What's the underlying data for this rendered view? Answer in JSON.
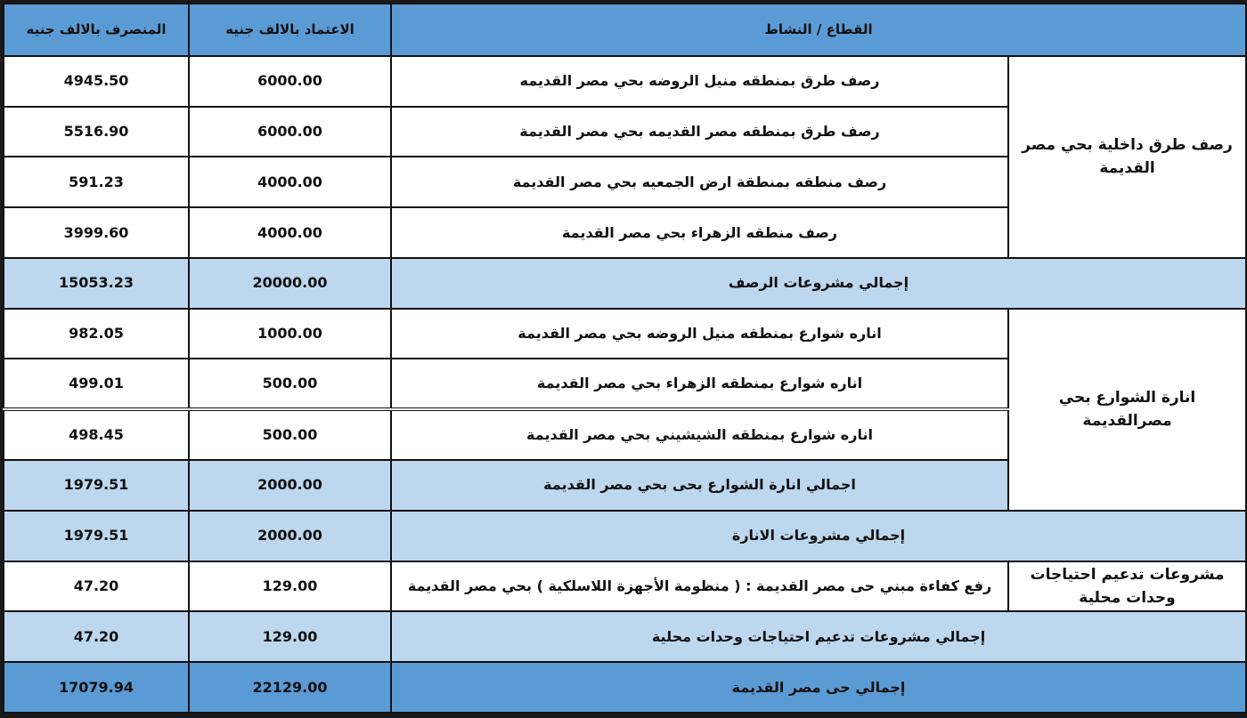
{
  "header": {
    "sector": "القطاع / النشاط",
    "budget": "الاعتماد بالالف جنيه",
    "spent": "المنصرف بالالف جنيه"
  },
  "groups": {
    "paving": {
      "sector": "رصف طرق داخلية بحي مصر القديمة",
      "rows": [
        {
          "activity": "رصف طرق بمنطقه منيل الروضه بحي مصر القديمه",
          "budget": "6000.00",
          "spent": "4945.50"
        },
        {
          "activity": "رصف طرق بمنطقه مصر القديمه  بحي مصر القديمة",
          "budget": "6000.00",
          "spent": "5516.90"
        },
        {
          "activity": "رصف منطقه بمنطقة ارض الجمعيه بحي مصر القديمة",
          "budget": "4000.00",
          "spent": "591.23"
        },
        {
          "activity": "رصف منطقه الزهراء  بحي مصر القديمة",
          "budget": "4000.00",
          "spent": "3999.60"
        }
      ],
      "total": {
        "label": "إجمالي مشروعات الرصف",
        "budget": "20000.00",
        "spent": "15053.23"
      }
    },
    "lighting": {
      "sector": "انارة الشوارع بحي مصرالقديمة",
      "rows": [
        {
          "activity": "اناره شوارع بمنطقه منيل الروضه  بحي مصر القديمة",
          "budget": "1000.00",
          "spent": "982.05"
        },
        {
          "activity": "اناره شوارع بمنطقه الزهراء  بحي مصر القديمة",
          "budget": "500.00",
          "spent": "499.01"
        },
        {
          "activity": "اناره  شوارع بمنطقه الشيشيني  بحي مصر القديمة",
          "budget": "500.00",
          "spent": "498.45"
        }
      ],
      "subtotal": {
        "label": "اجمالي انارة الشوارع بحى بحي مصر القديمة",
        "budget": "2000.00",
        "spent": "1979.51"
      },
      "total": {
        "label": "إجمالي مشروعات الانارة",
        "budget": "2000.00",
        "spent": "1979.51"
      }
    },
    "support": {
      "sector": "مشروعات تدعيم احتياجات وحدات محلية",
      "rows": [
        {
          "activity": "رفع كفاءة مبني حى مصر القديمة : ( منظومة الأجهزة اللاسلكية ) بحي مصر القديمة",
          "budget": "129.00",
          "spent": "47.20"
        }
      ],
      "total": {
        "label": "إجمالي مشروعات تدعيم احتياجات وحدات محلية",
        "budget": "129.00",
        "spent": "47.20"
      }
    }
  },
  "grand_total": {
    "label": "إجمالي حى مصر القديمة",
    "budget": "22129.00",
    "spent": "17079.94"
  },
  "colors": {
    "header": "#5b9bd5",
    "subtotal": "#bdd7ee",
    "border": "#111111"
  }
}
